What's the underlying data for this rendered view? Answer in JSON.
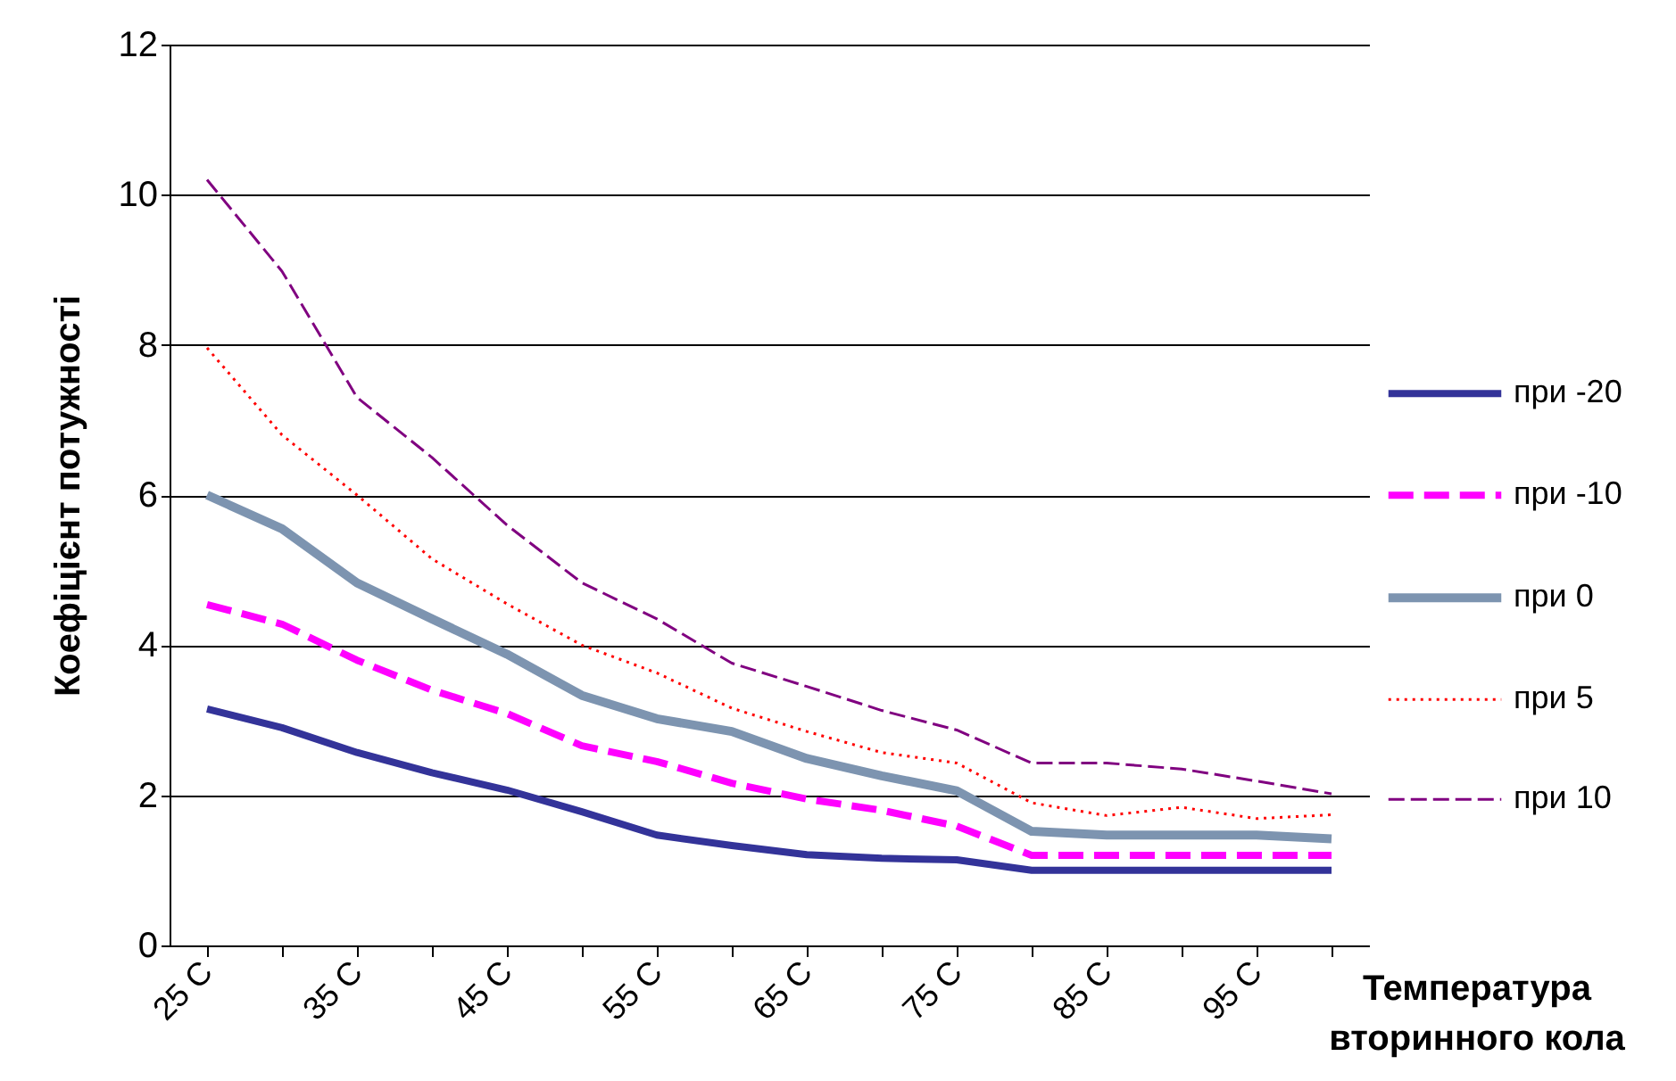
{
  "chart_data": {
    "type": "line",
    "ylabel": "Коефіцієнт потужності",
    "xlabel": "Температура вторинного кола",
    "categories": [
      "25 C",
      null,
      "35 C",
      null,
      "45 C",
      null,
      "55 C",
      null,
      "65 C",
      null,
      "75 C",
      null,
      "85 C",
      null,
      "95 C",
      null
    ],
    "series": [
      {
        "name": "при -20",
        "color": "#333399",
        "line_style": "solid",
        "values": [
          3.15,
          2.9,
          2.57,
          2.3,
          2.07,
          1.78,
          1.47,
          1.33,
          1.21,
          1.16,
          1.14,
          1.0,
          1.0,
          1.0,
          1.0,
          1.0
        ]
      },
      {
        "name": "при -10",
        "color": "#ff00ff",
        "line_style": "dashed",
        "values": [
          4.54,
          4.28,
          3.8,
          3.4,
          3.09,
          2.66,
          2.45,
          2.16,
          1.95,
          1.8,
          1.59,
          1.2,
          1.2,
          1.2,
          1.2,
          1.2
        ]
      },
      {
        "name": "при 0",
        "color": "#7d94b0",
        "line_style": "solid",
        "values": [
          6.0,
          5.55,
          4.83,
          4.35,
          3.88,
          3.33,
          3.02,
          2.85,
          2.49,
          2.26,
          2.06,
          1.52,
          1.47,
          1.47,
          1.47,
          1.42
        ]
      },
      {
        "name": "при 5",
        "color": "#ff0000",
        "line_style": "dotted",
        "values": [
          7.96,
          6.8,
          6.0,
          5.15,
          4.55,
          4.0,
          3.63,
          3.16,
          2.85,
          2.57,
          2.43,
          1.9,
          1.73,
          1.84,
          1.69,
          1.74
        ]
      },
      {
        "name": "при 10",
        "color": "#800080",
        "line_style": "dashed",
        "values": [
          10.2,
          8.98,
          7.3,
          6.5,
          5.6,
          4.83,
          4.35,
          3.76,
          3.45,
          3.13,
          2.87,
          2.43,
          2.43,
          2.35,
          2.19,
          2.02
        ]
      }
    ],
    "ylim": [
      0,
      12
    ],
    "yticks": [
      0,
      2,
      4,
      6,
      8,
      10,
      12
    ],
    "grid": "y",
    "legend": "right"
  }
}
